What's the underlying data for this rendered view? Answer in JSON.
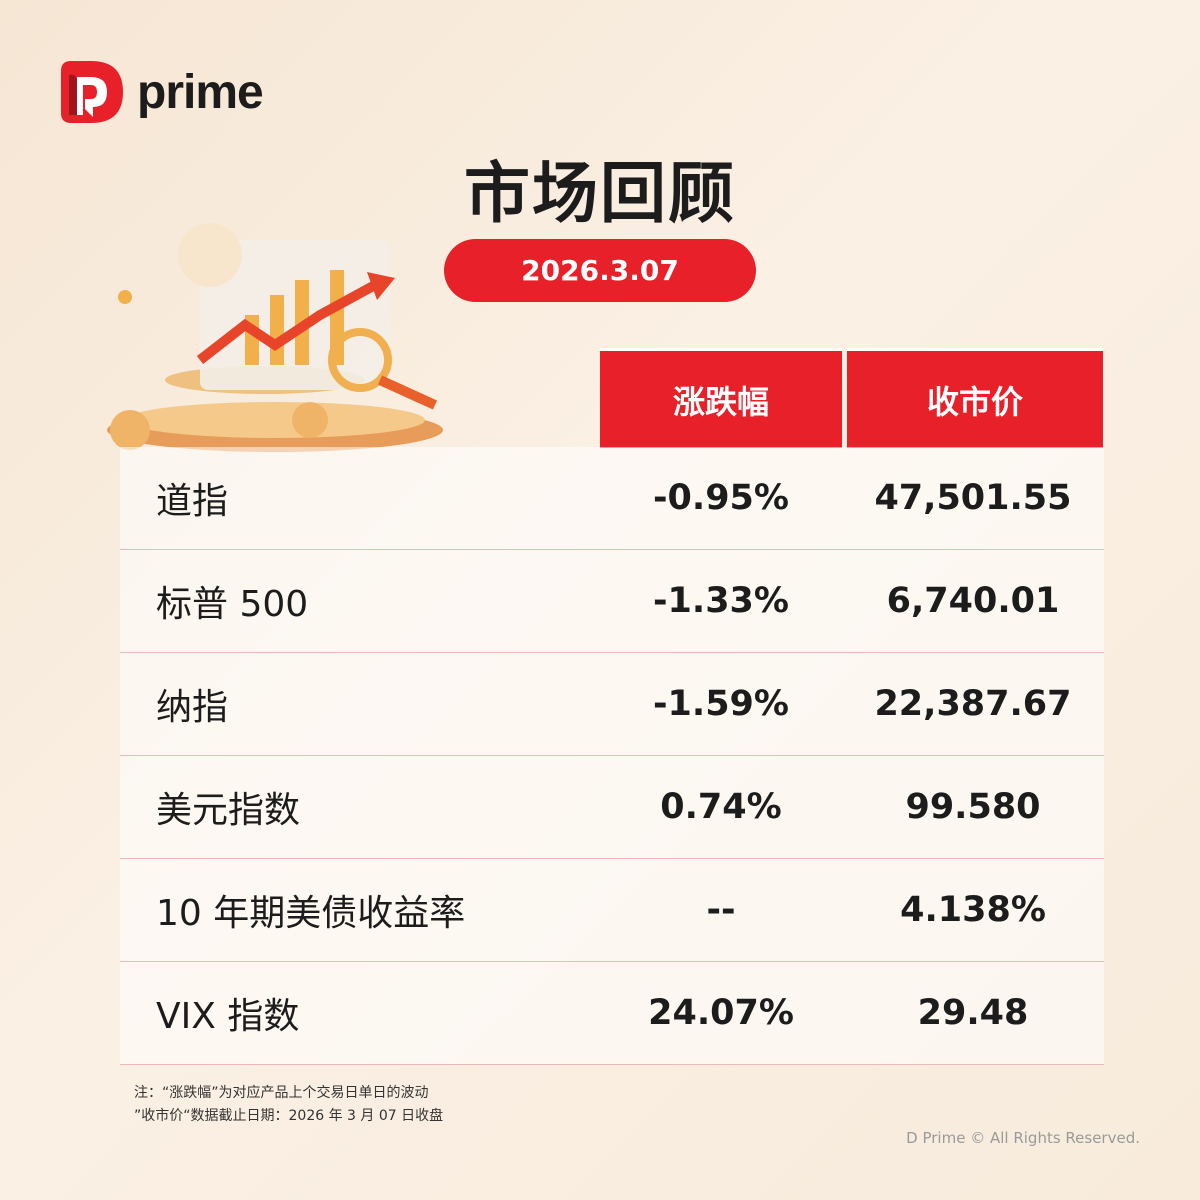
{
  "brand": {
    "logo_text": "prime",
    "accent": "#e8202a"
  },
  "title": "市场回顾",
  "date": "2026.3.07",
  "table": {
    "headers": [
      "涨跌幅",
      "收市价"
    ],
    "rows": [
      {
        "name": "道指",
        "change": "-0.95%",
        "close": "47,501.55"
      },
      {
        "name": "标普 500",
        "change": "-1.33%",
        "close": "6,740.01"
      },
      {
        "name": "纳指",
        "change": "-1.59%",
        "close": "22,387.67"
      },
      {
        "name": "美元指数",
        "change": "0.74%",
        "close": "99.580"
      },
      {
        "name": "10 年期美债收益率",
        "change": "--",
        "close": "4.138%"
      },
      {
        "name": "VIX 指数",
        "change": "24.07%",
        "close": "29.48"
      }
    ]
  },
  "notes": [
    "注：“涨跌幅”为对应产品上个交易日单日的波动",
    "”收市价“数据截止日期：2026 年 3 月 07 日收盘"
  ],
  "copyright": "D Prime © All Rights Reserved."
}
